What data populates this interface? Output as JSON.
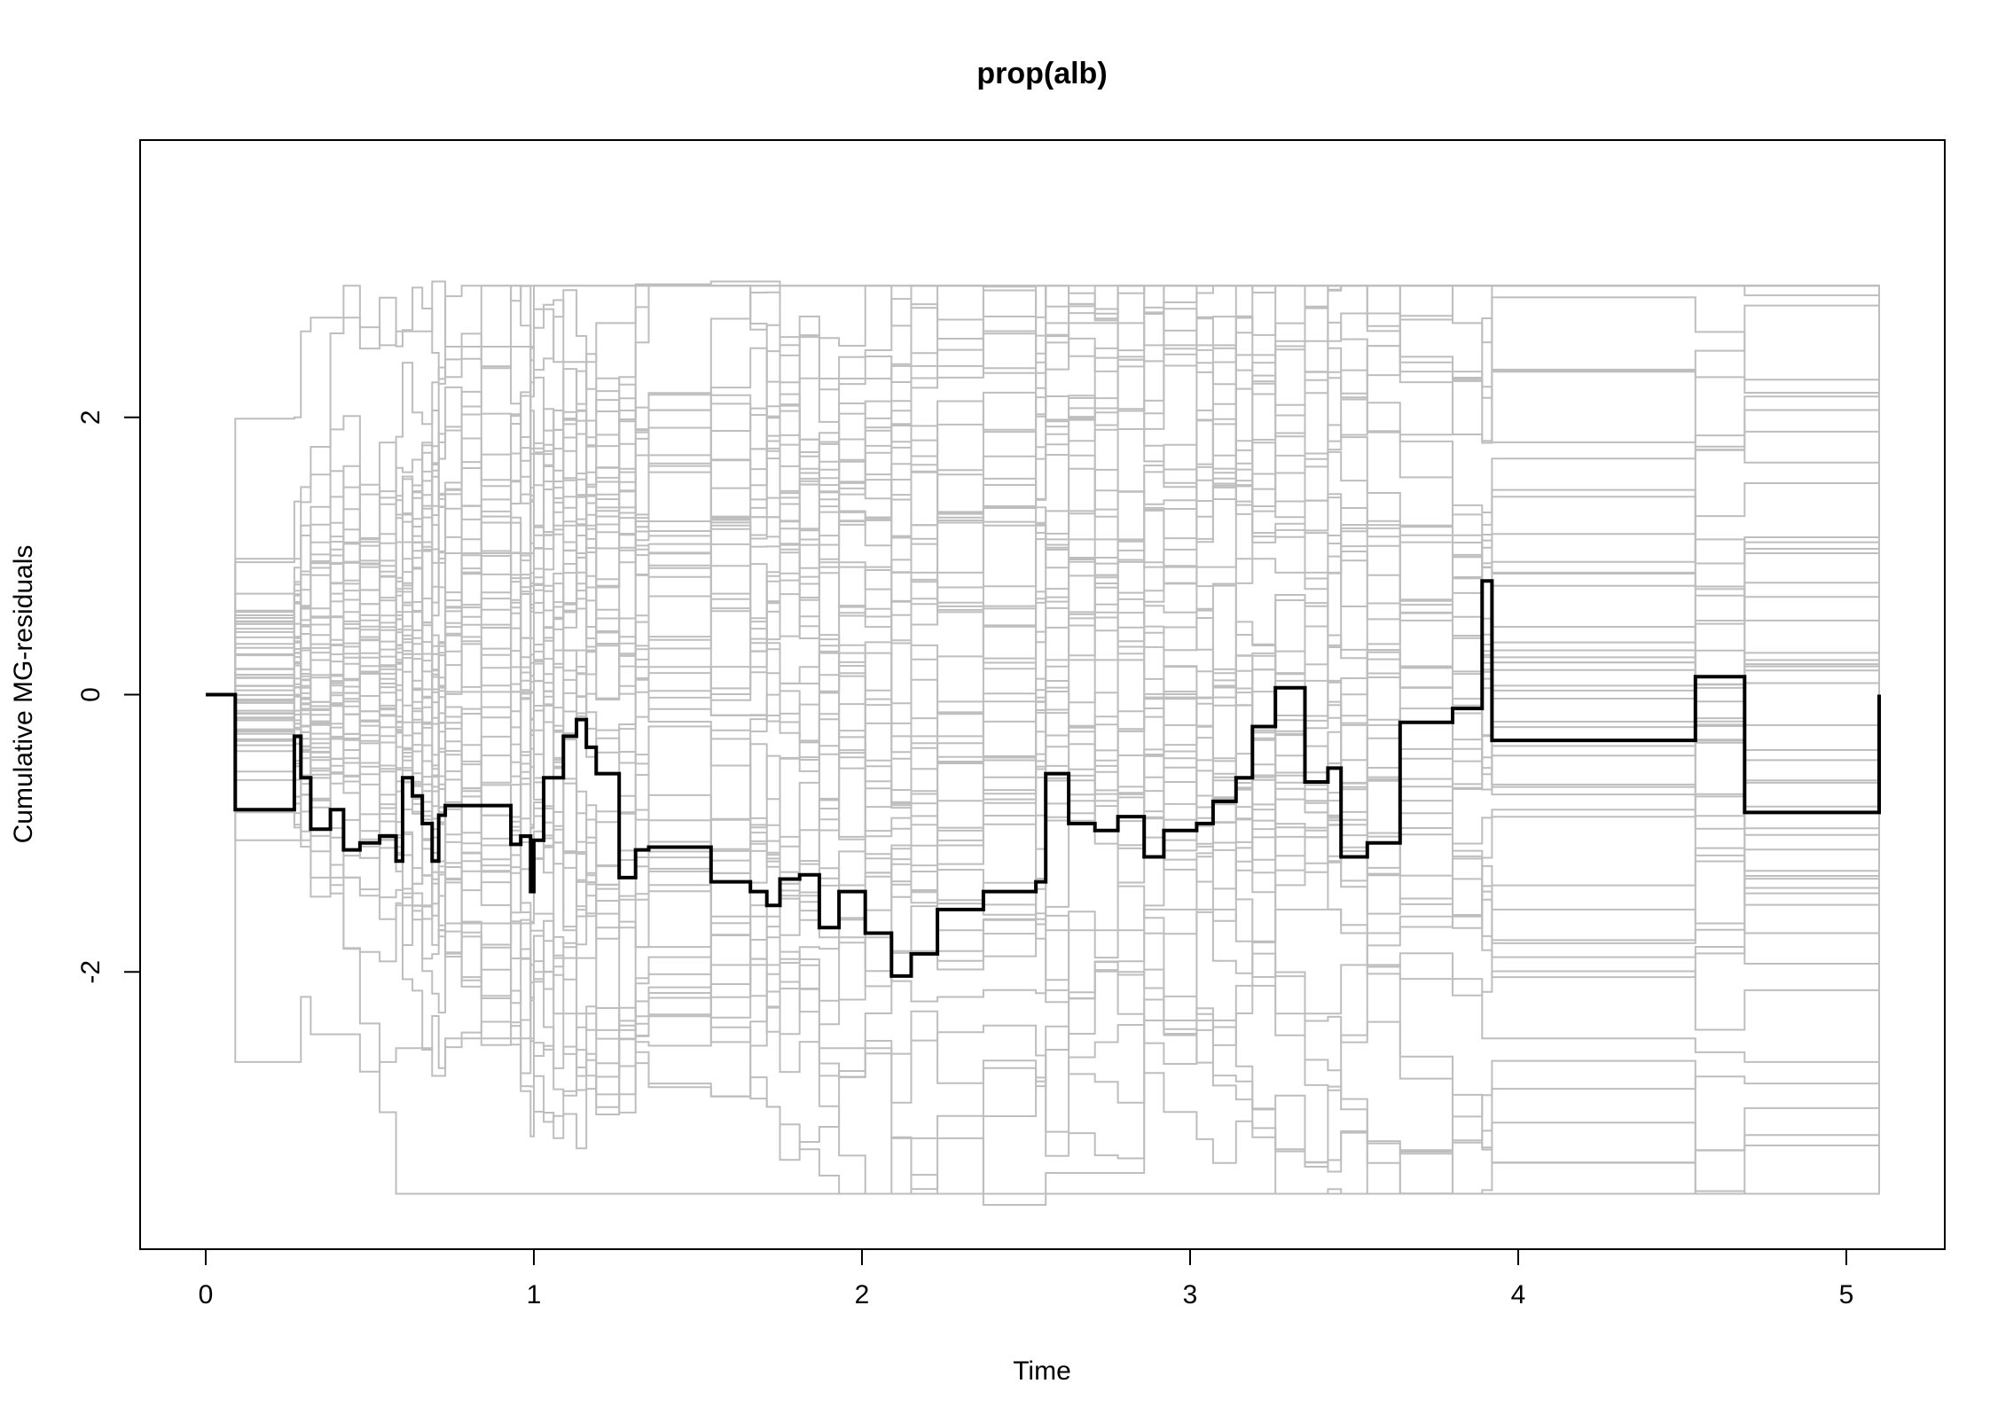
{
  "chart_data": {
    "type": "line",
    "title": "prop(alb)",
    "xlabel": "Time",
    "ylabel": "Cumulative MG-residuals",
    "xlim": [
      -0.2,
      5.3
    ],
    "ylim": [
      -4.0,
      4.0
    ],
    "x_ticks": [
      0,
      1,
      2,
      3,
      4,
      5
    ],
    "x_tick_labels": [
      "0",
      "1",
      "2",
      "3",
      "4",
      "5"
    ],
    "y_ticks": [
      -2,
      0,
      2
    ],
    "y_tick_labels": [
      "-2",
      "0",
      "2"
    ],
    "grid": false,
    "legend": "none",
    "colors": {
      "observed": "#000000",
      "simulated": "#bebebe",
      "frame": "#000000"
    },
    "simulated_paths_count": 50,
    "series": [
      {
        "role": "observed",
        "x": [
          0,
          0.09,
          0.27,
          0.29,
          0.32,
          0.38,
          0.42,
          0.47,
          0.53,
          0.58,
          0.6,
          0.63,
          0.66,
          0.69,
          0.71,
          0.73,
          0.78,
          0.84,
          0.93,
          0.96,
          0.99,
          1.0,
          1.03,
          1.06,
          1.09,
          1.13,
          1.16,
          1.19,
          1.26,
          1.31,
          1.35,
          1.54,
          1.66,
          1.71,
          1.75,
          1.81,
          1.87,
          1.93,
          2.01,
          2.09,
          2.15,
          2.23,
          2.37,
          2.53,
          2.56,
          2.63,
          2.71,
          2.78,
          2.86,
          2.92,
          3.02,
          3.07,
          3.14,
          3.19,
          3.26,
          3.35,
          3.42,
          3.46,
          3.54,
          3.64,
          3.8,
          3.89,
          3.92,
          4.54,
          4.69,
          5.1
        ],
        "y": [
          0,
          -0.83,
          -0.3,
          -0.6,
          -0.97,
          -0.83,
          -1.12,
          -1.07,
          -1.02,
          -1.2,
          -0.6,
          -0.73,
          -0.93,
          -1.2,
          -0.87,
          -0.8,
          -0.8,
          -0.8,
          -1.08,
          -1.02,
          -1.42,
          -1.05,
          -0.6,
          -0.6,
          -0.3,
          -0.18,
          -0.38,
          -0.57,
          -1.32,
          -1.12,
          -1.1,
          -1.35,
          -1.42,
          -1.52,
          -1.33,
          -1.3,
          -1.68,
          -1.42,
          -1.72,
          -2.03,
          -1.87,
          -1.55,
          -1.42,
          -1.35,
          -0.57,
          -0.93,
          -0.98,
          -0.88,
          -1.17,
          -0.98,
          -0.93,
          -0.77,
          -0.6,
          -0.23,
          0.05,
          -0.63,
          -0.53,
          -1.17,
          -1.07,
          -0.2,
          -0.1,
          0.82,
          -0.33,
          0.13,
          -0.85,
          0.0
        ]
      },
      {
        "role": "simulated-example",
        "x": [
          0,
          0.09,
          0.27,
          0.29,
          0.32,
          0.47,
          0.53,
          0.58,
          0.69,
          0.73,
          1.0,
          1.06,
          1.19,
          1.31,
          1.54,
          1.75,
          1.87,
          2.09,
          2.37,
          2.56,
          2.86,
          3.14,
          3.26,
          3.46,
          3.64,
          3.89,
          3.92,
          4.54,
          4.69,
          5.1
        ],
        "y": [
          0,
          1.99,
          2.0,
          2.62,
          2.72,
          2.65,
          2.52,
          2.62,
          2.98,
          2.51,
          2.78,
          2.4,
          2.68,
          2.96,
          2.98,
          2.58,
          2.28,
          2.37,
          2.32,
          2.68,
          2.52,
          2.45,
          2.55,
          2.75,
          2.33,
          2.22,
          1.82,
          1.87,
          2.15,
          0.0
        ]
      },
      {
        "role": "simulated-example",
        "x": [
          0,
          0.09,
          0.27,
          0.29,
          0.32,
          0.47,
          0.53,
          0.58,
          0.69,
          0.73,
          1.0,
          1.06,
          1.19,
          1.31,
          1.54,
          1.75,
          1.87,
          2.09,
          2.37,
          2.56,
          2.86,
          3.14,
          3.26,
          3.46,
          3.64,
          3.89,
          3.92,
          4.54,
          4.69,
          5.1
        ],
        "y": [
          0,
          -2.65,
          -2.65,
          -2.18,
          -2.45,
          -2.72,
          -2.65,
          -2.55,
          -2.75,
          -2.48,
          -2.0,
          -2.3,
          -2.42,
          -2.32,
          -1.95,
          -2.12,
          -2.55,
          -3.2,
          -3.68,
          -3.45,
          -2.35,
          -2.1,
          -2.3,
          -1.95,
          -2.05,
          -2.48,
          -2.48,
          -2.58,
          -2.65,
          0.0
        ]
      },
      {
        "role": "simulated-example",
        "x": [
          0,
          0.09,
          0.27,
          0.29,
          0.32,
          0.47,
          0.53,
          0.58,
          0.69,
          0.73,
          1.0,
          1.06,
          1.19,
          1.31,
          1.54,
          1.75,
          1.87,
          2.09,
          2.37,
          2.56,
          2.86,
          3.14,
          3.26,
          3.46,
          3.64,
          3.89,
          3.92,
          4.54,
          4.69,
          5.1
        ],
        "y": [
          0,
          0.98,
          0.98,
          1.22,
          0.95,
          0.92,
          0.85,
          1.1,
          0.95,
          1.02,
          1.15,
          1.22,
          1.35,
          1.25,
          1.28,
          1.08,
          0.92,
          0.88,
          1.22,
          1.12,
          0.92,
          0.98,
          0.88,
          1.2,
          1.15,
          0.92,
          0.88,
          1.12,
          1.02,
          0.0
        ]
      },
      {
        "role": "simulated-example",
        "x": [
          0,
          0.09,
          0.27,
          0.29,
          0.32,
          0.47,
          0.53,
          0.58,
          0.69,
          0.73,
          1.0,
          1.06,
          1.19,
          1.31,
          1.54,
          1.75,
          1.87,
          2.09,
          2.37,
          2.56,
          2.86,
          3.14,
          3.26,
          3.46,
          3.64,
          3.89,
          3.92,
          4.54,
          4.69,
          5.1
        ],
        "y": [
          0,
          -1.05,
          -1.05,
          -0.72,
          -1.32,
          -1.45,
          -1.62,
          -1.52,
          -1.28,
          -1.65,
          -1.58,
          -1.9,
          -1.68,
          -1.82,
          -1.6,
          -1.45,
          -1.75,
          -1.85,
          -1.62,
          -1.7,
          -1.55,
          -1.78,
          -1.55,
          -1.72,
          -1.6,
          -1.42,
          -1.55,
          -1.65,
          -1.72,
          0.0
        ]
      },
      {
        "role": "simulated-example",
        "x": [
          0,
          0.09,
          0.27,
          0.29,
          0.32,
          0.47,
          0.53,
          0.58,
          0.69,
          0.73,
          1.0,
          1.06,
          1.19,
          1.31,
          1.54,
          1.75,
          1.87,
          2.09,
          2.37,
          2.56,
          2.86,
          3.14,
          3.26,
          3.46,
          3.64,
          3.89,
          3.92,
          4.54,
          4.69,
          5.1
        ],
        "y": [
          0,
          -0.25,
          -0.25,
          0.15,
          -0.32,
          -0.12,
          0.08,
          -0.2,
          0.35,
          0.02,
          -0.08,
          0.32,
          0.55,
          0.2,
          -0.15,
          0.08,
          0.3,
          -0.3,
          -0.05,
          0.25,
          -0.02,
          0.28,
          0.1,
          -0.22,
          -0.1,
          0.18,
          0.32,
          -0.05,
          0.22,
          0.0
        ]
      }
    ]
  }
}
